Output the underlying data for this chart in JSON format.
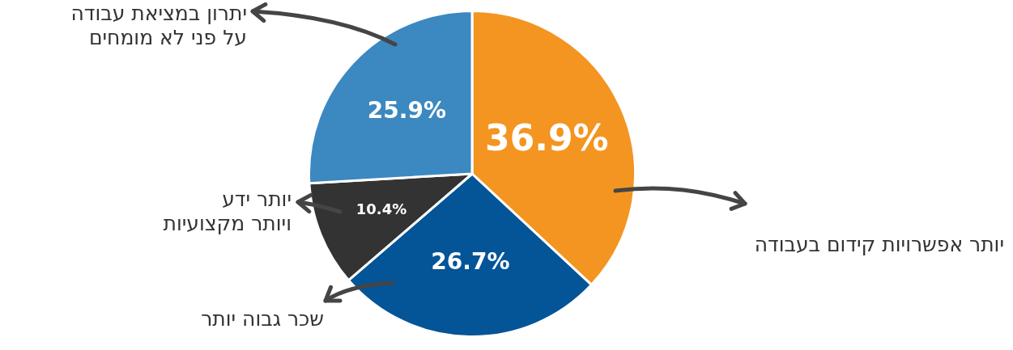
{
  "chart_data": {
    "type": "pie",
    "categories": [
      "יותר אפשרויות קידום בעבודה",
      "שכר גבוה יותר",
      "יותר ידע\nויותר מקצועיות",
      "יתרון במציאת עבודה\nעל פני לא מומחים"
    ],
    "values": [
      36.9,
      26.7,
      10.4,
      25.9
    ],
    "colors": [
      "#f39520",
      "#045498",
      "#333333",
      "#3c88c0"
    ],
    "value_labels": [
      "36.9%",
      "26.7%",
      "10.4%",
      "25.9%"
    ],
    "legend": false
  }
}
